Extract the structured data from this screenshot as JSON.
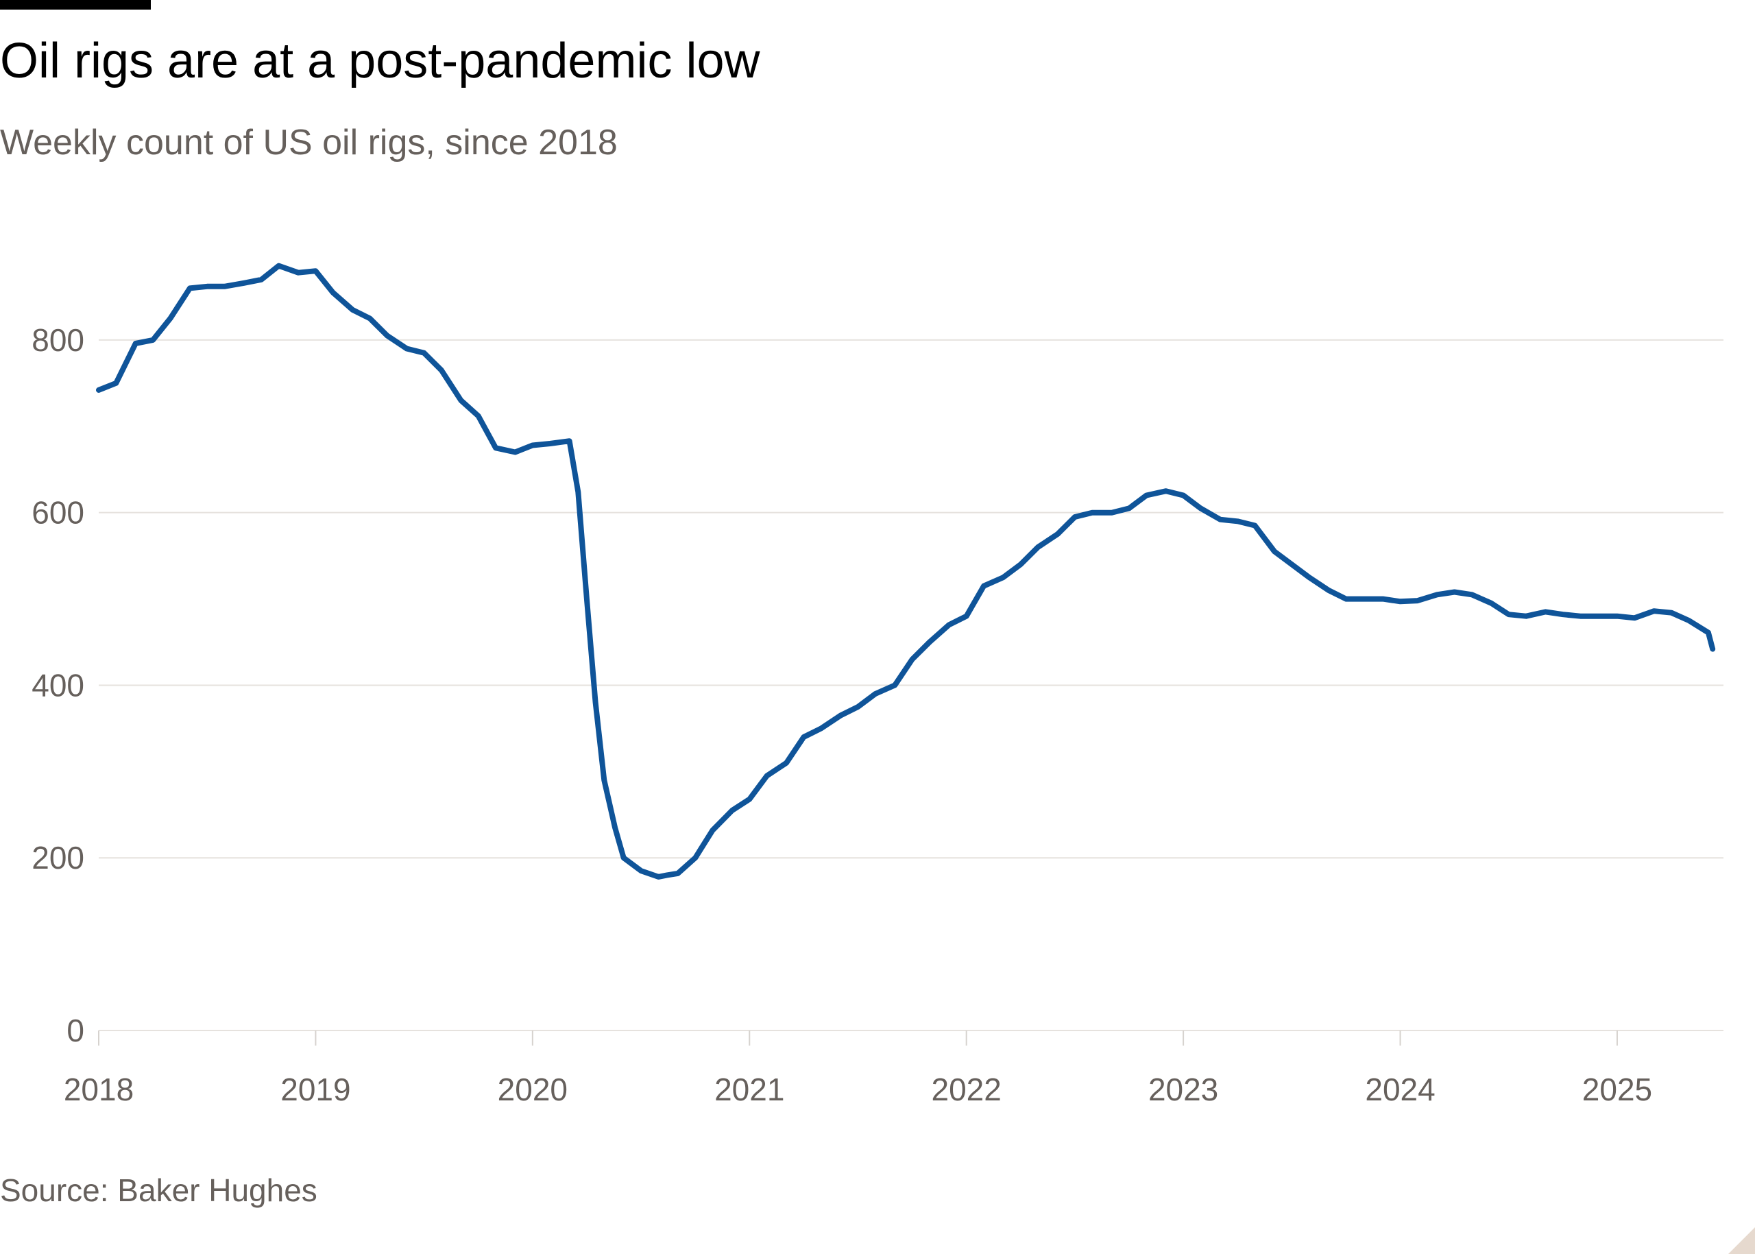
{
  "chart_data": {
    "type": "line",
    "title": "Oil rigs are at a post-pandemic low",
    "subtitle": "Weekly count of US oil rigs, since 2018",
    "source": "Source: Baker Hughes",
    "x": [
      2018.0,
      2018.08,
      2018.17,
      2018.25,
      2018.33,
      2018.42,
      2018.5,
      2018.58,
      2018.67,
      2018.75,
      2018.83,
      2018.92,
      2019.0,
      2019.08,
      2019.17,
      2019.25,
      2019.33,
      2019.42,
      2019.5,
      2019.58,
      2019.67,
      2019.75,
      2019.83,
      2019.92,
      2020.0,
      2020.08,
      2020.17,
      2020.21,
      2020.25,
      2020.29,
      2020.33,
      2020.38,
      2020.42,
      2020.5,
      2020.58,
      2020.62,
      2020.67,
      2020.75,
      2020.83,
      2020.92,
      2021.0,
      2021.08,
      2021.17,
      2021.25,
      2021.33,
      2021.42,
      2021.5,
      2021.58,
      2021.67,
      2021.75,
      2021.83,
      2021.92,
      2022.0,
      2022.08,
      2022.17,
      2022.25,
      2022.33,
      2022.42,
      2022.5,
      2022.58,
      2022.67,
      2022.75,
      2022.83,
      2022.92,
      2023.0,
      2023.08,
      2023.17,
      2023.25,
      2023.33,
      2023.42,
      2023.5,
      2023.58,
      2023.67,
      2023.75,
      2023.83,
      2023.92,
      2024.0,
      2024.08,
      2024.17,
      2024.25,
      2024.33,
      2024.42,
      2024.5,
      2024.58,
      2024.67,
      2024.75,
      2024.83,
      2024.92,
      2025.0,
      2025.08,
      2025.17,
      2025.25,
      2025.33,
      2025.42,
      2025.44
    ],
    "series": [
      {
        "name": "US oil rigs",
        "color": "#0f5499",
        "values": [
          742,
          750,
          796,
          800,
          825,
          860,
          862,
          862,
          866,
          870,
          886,
          878,
          880,
          855,
          835,
          825,
          805,
          790,
          785,
          765,
          730,
          712,
          675,
          670,
          678,
          680,
          683,
          624,
          500,
          380,
          290,
          235,
          200,
          185,
          178,
          180,
          182,
          200,
          232,
          255,
          268,
          295,
          310,
          340,
          350,
          365,
          375,
          390,
          400,
          430,
          450,
          470,
          480,
          515,
          525,
          540,
          560,
          575,
          595,
          600,
          600,
          605,
          620,
          625,
          620,
          605,
          592,
          590,
          585,
          555,
          540,
          525,
          510,
          500,
          500,
          500,
          497,
          498,
          505,
          508,
          505,
          495,
          482,
          480,
          485,
          482,
          480,
          480,
          480,
          478,
          486,
          484,
          475,
          461,
          442
        ]
      }
    ],
    "xlim": [
      2018,
      2025.49
    ],
    "xticks": [
      2018,
      2019,
      2020,
      2021,
      2022,
      2023,
      2024,
      2025
    ],
    "ylim": [
      0,
      900
    ],
    "yticks": [
      0,
      200,
      400,
      600,
      800
    ],
    "grid": true
  }
}
